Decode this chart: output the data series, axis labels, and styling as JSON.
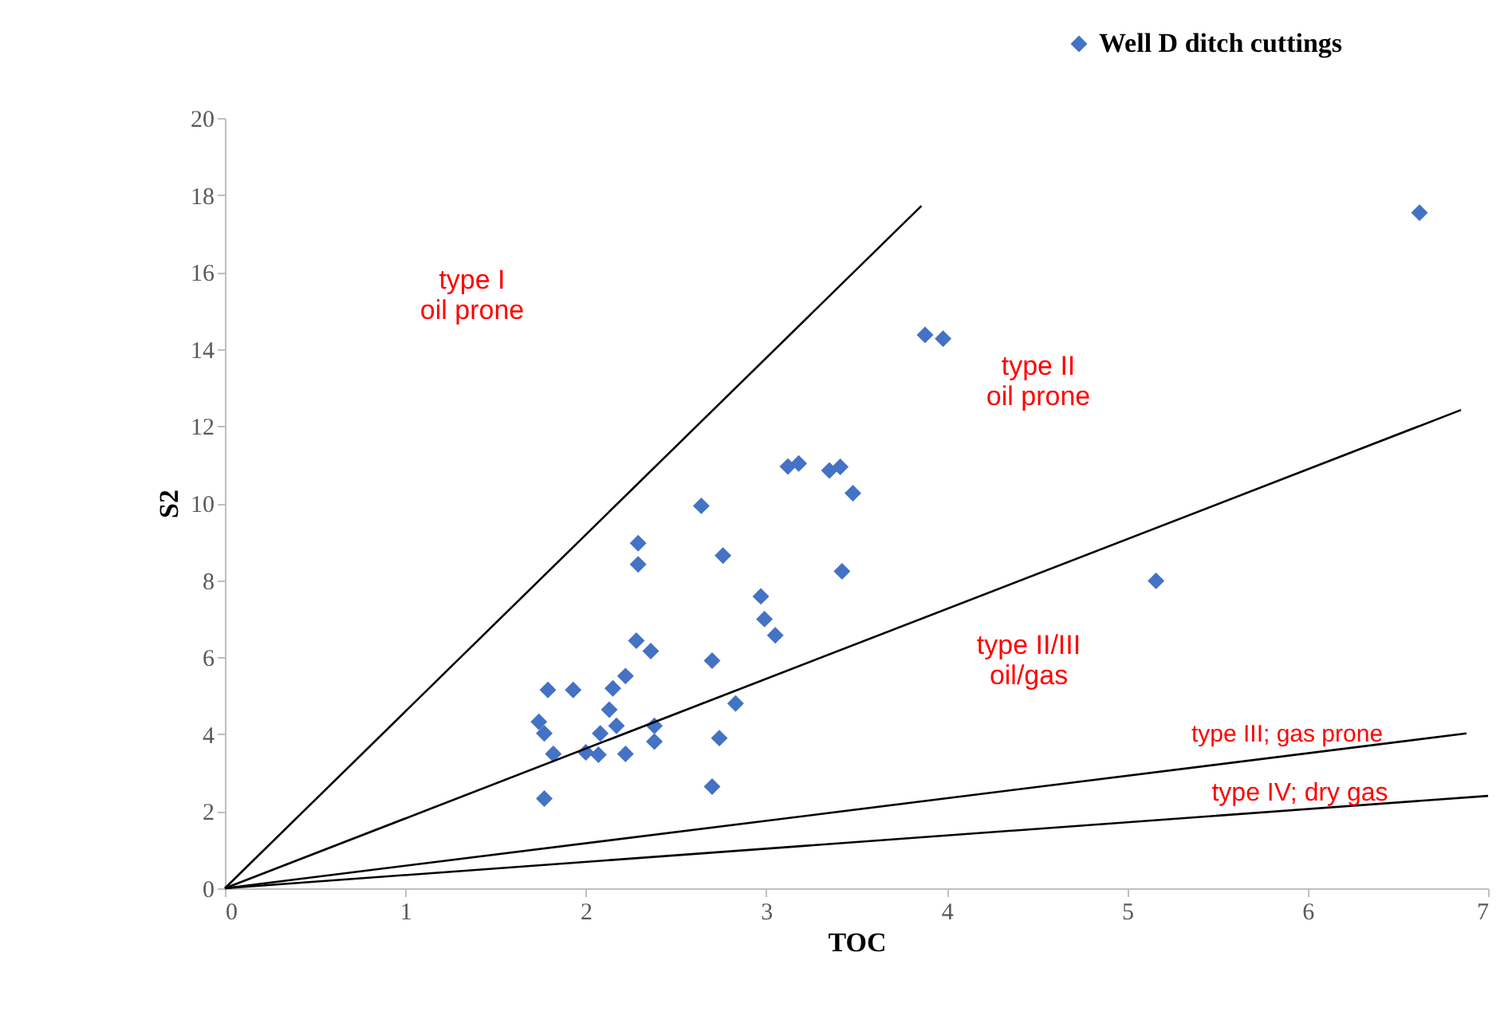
{
  "chart_data": {
    "type": "scatter",
    "xlabel": "TOC",
    "ylabel": "S2",
    "xlim": [
      0,
      7
    ],
    "ylim": [
      0,
      20
    ],
    "xticks": [
      0,
      1,
      2,
      3,
      4,
      5,
      6,
      7
    ],
    "yticks": [
      0,
      2,
      4,
      6,
      8,
      10,
      12,
      14,
      16,
      18,
      20
    ],
    "grid": false,
    "legend": "top right",
    "series": [
      {
        "name": "Well D ditch cuttings",
        "color": "#4472c4",
        "x": [
          1.79,
          1.93,
          1.74,
          1.77,
          1.82,
          1.77,
          2.0,
          2.07,
          2.08,
          2.13,
          2.15,
          2.22,
          2.17,
          2.22,
          2.29,
          2.29,
          2.28,
          2.36,
          2.38,
          2.38,
          2.64,
          2.76,
          2.7,
          2.83,
          2.74,
          2.7,
          2.97,
          2.99,
          3.05,
          3.12,
          3.18,
          3.35,
          3.41,
          3.48,
          3.42,
          3.88,
          3.98,
          6.62,
          5.16
        ],
        "values": [
          5.15,
          5.15,
          4.32,
          4.02,
          3.49,
          2.33,
          3.53,
          3.47,
          4.02,
          4.64,
          5.19,
          5.51,
          4.22,
          3.49,
          8.96,
          8.41,
          6.43,
          6.16,
          4.22,
          3.81,
          9.93,
          8.64,
          5.91,
          4.8,
          3.9,
          2.64,
          7.58,
          6.99,
          6.57,
          10.95,
          11.03,
          10.85,
          10.94,
          10.26,
          8.23,
          14.37,
          14.27,
          17.54,
          7.98
        ]
      },
      {
        "color": "#000000",
        "type": "line",
        "marker": "none",
        "line_style": "solid",
        "x": [
          0,
          3.86
        ],
        "values": [
          0,
          17.72
        ]
      },
      {
        "color": "#000000",
        "type": "line",
        "marker": "none",
        "line_style": "solid",
        "x": [
          0,
          6.85
        ],
        "values": [
          0,
          12.42
        ]
      },
      {
        "color": "#000000",
        "type": "line",
        "marker": "none",
        "line_style": "solid",
        "x": [
          0,
          6.88
        ],
        "values": [
          0,
          4.02
        ]
      },
      {
        "color": "#000000",
        "type": "line",
        "marker": "none",
        "line_style": "solid",
        "x": [
          0,
          7.0
        ],
        "values": [
          0,
          2.4
        ]
      }
    ],
    "marker": "diamond",
    "annotations": [
      "type I\noil prone",
      "type II\noil prone",
      "type II/III\noil/gas",
      "type III; gas prone",
      "type IV; dry gas"
    ]
  }
}
